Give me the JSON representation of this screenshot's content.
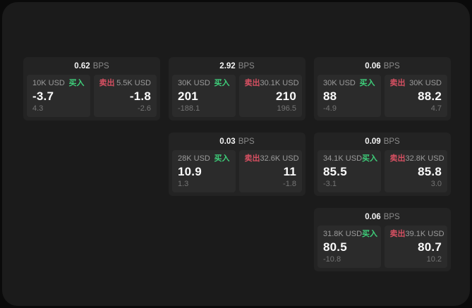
{
  "labels": {
    "bps_suffix": "BPS",
    "buy": "买入",
    "sell": "卖出"
  },
  "colors": {
    "buy_accent": "#3ecf7a",
    "sell_accent": "#d75062",
    "surface": "#1b1b1b",
    "card": "#232323",
    "tile": "#2b2b2b"
  },
  "cards": [
    {
      "bps": "0.62",
      "buy": {
        "size": "10K USD",
        "value": "-3.7",
        "delta": "4.3"
      },
      "sell": {
        "size": "5.5K USD",
        "value": "-1.8",
        "delta": "-2.6"
      }
    },
    {
      "bps": "2.92",
      "buy": {
        "size": "30K USD",
        "value": "201",
        "delta": "-188.1"
      },
      "sell": {
        "size": "30.1K USD",
        "value": "210",
        "delta": "196.5"
      }
    },
    {
      "bps": "0.06",
      "buy": {
        "size": "30K USD",
        "value": "88",
        "delta": "-4.9"
      },
      "sell": {
        "size": "30K USD",
        "value": "88.2",
        "delta": "4.7"
      }
    },
    {
      "bps": "0.03",
      "buy": {
        "size": "28K USD",
        "value": "10.9",
        "delta": "1.3"
      },
      "sell": {
        "size": "32.6K USD",
        "value": "11",
        "delta": "-1.8"
      }
    },
    {
      "bps": "0.09",
      "buy": {
        "size": "34.1K USD",
        "value": "85.5",
        "delta": "-3.1"
      },
      "sell": {
        "size": "32.8K USD",
        "value": "85.8",
        "delta": "3.0"
      }
    },
    {
      "bps": "0.06",
      "buy": {
        "size": "31.8K USD",
        "value": "80.5",
        "delta": "-10.8"
      },
      "sell": {
        "size": "39.1K USD",
        "value": "80.7",
        "delta": "10.2"
      }
    }
  ]
}
